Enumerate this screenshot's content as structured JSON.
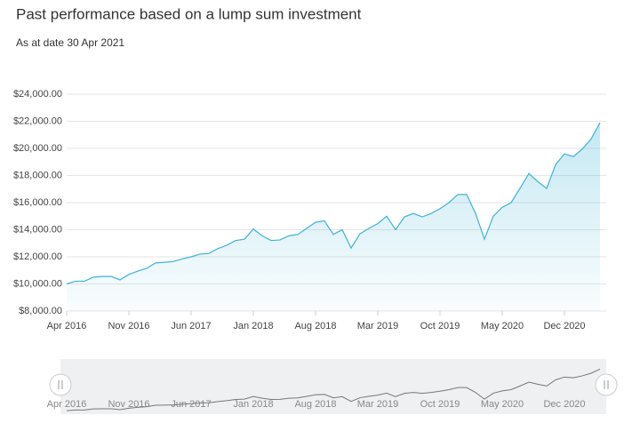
{
  "chart_data": {
    "type": "line",
    "title": "Past performance based on a lump sum investment",
    "subtitle": "As at date 30 Apr 2021",
    "categories": [
      "Apr 2016",
      null,
      null,
      null,
      null,
      null,
      null,
      "Nov 2016",
      null,
      null,
      null,
      null,
      null,
      null,
      "Jun 2017",
      null,
      null,
      null,
      null,
      null,
      null,
      "Jan 2018",
      null,
      null,
      null,
      null,
      null,
      null,
      "Aug 2018",
      null,
      null,
      null,
      null,
      null,
      null,
      "Mar 2019",
      null,
      null,
      null,
      null,
      null,
      null,
      "Oct 2019",
      null,
      null,
      null,
      null,
      null,
      null,
      "May 2020",
      null,
      null,
      null,
      null,
      null,
      null,
      "Dec 2020",
      null,
      null,
      null,
      null
    ],
    "values": [
      10000,
      10200,
      10200,
      10500,
      10550,
      10550,
      10300,
      10700,
      10950,
      11150,
      11550,
      11600,
      11650,
      11850,
      12000,
      12200,
      12250,
      12600,
      12850,
      13200,
      13300,
      14050,
      13550,
      13200,
      13250,
      13550,
      13650,
      14100,
      14550,
      14650,
      13650,
      14000,
      12650,
      13700,
      14100,
      14450,
      15000,
      14000,
      14950,
      15200,
      14950,
      15200,
      15550,
      16000,
      16600,
      16600,
      15200,
      13300,
      15000,
      15650,
      16000,
      17050,
      18150,
      17550,
      17050,
      18800,
      19600,
      19400,
      19950,
      20700,
      21900
    ],
    "color": "#3db3d6",
    "ylim": [
      8000,
      24000
    ],
    "yticks": [
      {
        "value": 8000,
        "label": "$8,000.00"
      },
      {
        "value": 10000,
        "label": "$10,000.00"
      },
      {
        "value": 12000,
        "label": "$12,000.00"
      },
      {
        "value": 14000,
        "label": "$14,000.00"
      },
      {
        "value": 16000,
        "label": "$16,000.00"
      },
      {
        "value": 18000,
        "label": "$18,000.00"
      },
      {
        "value": 20000,
        "label": "$20,000.00"
      },
      {
        "value": 22000,
        "label": "$22,000.00"
      },
      {
        "value": 24000,
        "label": "$24,000.00"
      }
    ],
    "grid": true
  }
}
